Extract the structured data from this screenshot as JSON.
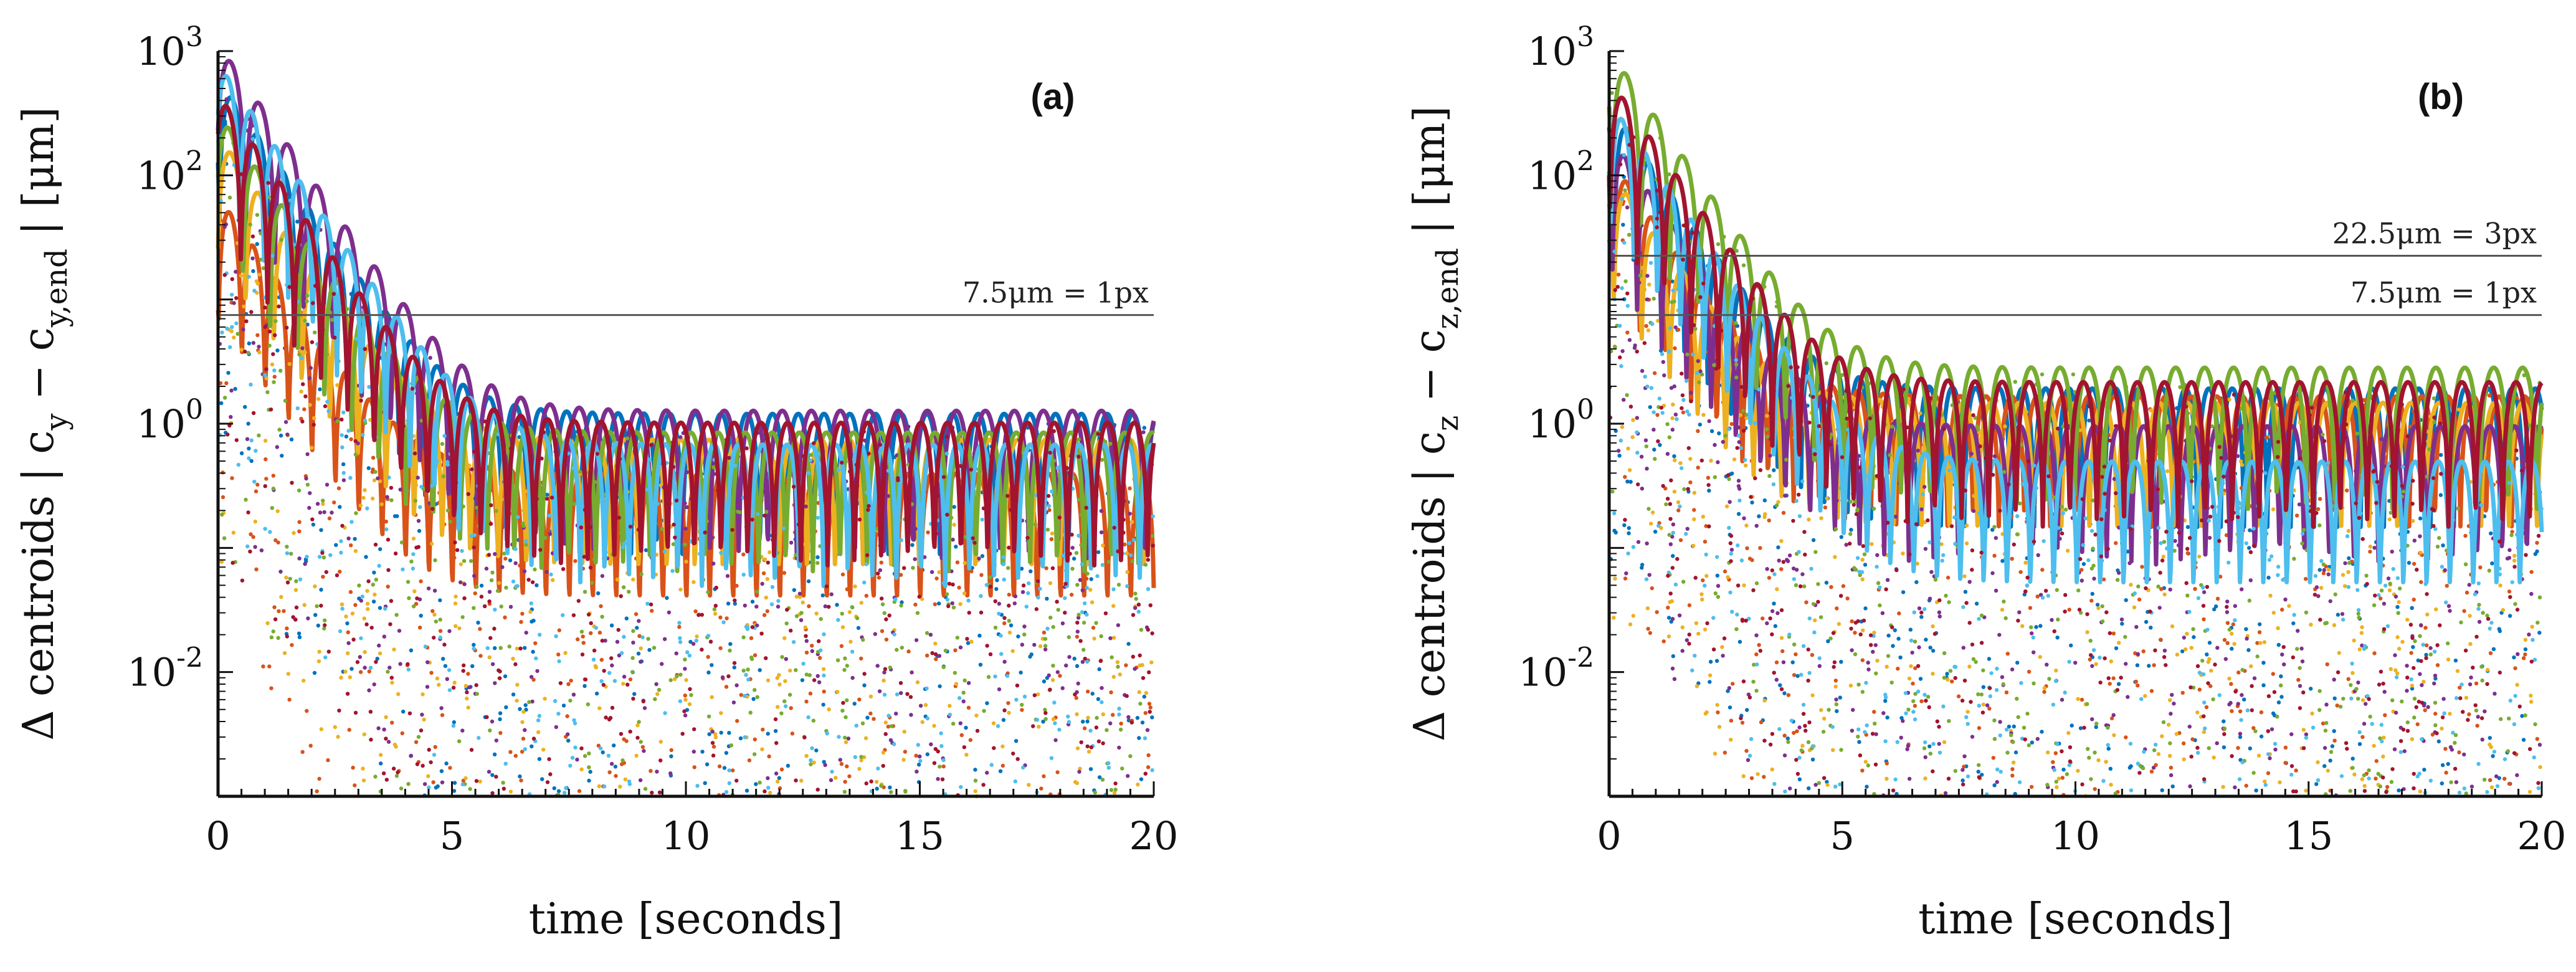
{
  "chart_data": [
    {
      "type": "line",
      "panel_label": "(a)",
      "xlabel": "time [seconds]",
      "ylabel": {
        "prefix": "Δ centroids   | c",
        "sub1": "y",
        "mid": " − c",
        "sub2": "y,end",
        "suffix": " | [μm]"
      },
      "xlim": [
        0,
        20
      ],
      "xticks": [
        "0",
        "5",
        "10",
        "15",
        "20"
      ],
      "ylim": [
        0.001,
        1000
      ],
      "yscale": "log",
      "yticks": [
        {
          "value": 0.01,
          "base": "10",
          "exp": "-2"
        },
        {
          "value": 1,
          "base": "10",
          "exp": "0"
        },
        {
          "value": 100,
          "base": "10",
          "exp": "2"
        },
        {
          "value": 1000,
          "base": "10",
          "exp": "3"
        }
      ],
      "reference_lines": [
        {
          "value": 7.5,
          "label": "7.5μm = 1px"
        }
      ],
      "series": [
        {
          "name": "series-blue-dark",
          "color": "#0072BD",
          "start": 500,
          "floor": 1.0,
          "amp": 1.6,
          "period": 0.55
        },
        {
          "name": "series-orange",
          "color": "#D95319",
          "start": 60,
          "floor": 0.35,
          "amp": 1.5,
          "period": 0.5
        },
        {
          "name": "series-yellow",
          "color": "#EDB120",
          "start": 200,
          "floor": 0.7,
          "amp": 1.4,
          "period": 0.6
        },
        {
          "name": "series-purple",
          "color": "#7E2F8E",
          "start": 900,
          "floor": 1.0,
          "amp": 1.7,
          "period": 0.62
        },
        {
          "name": "series-green",
          "color": "#77AC30",
          "start": 300,
          "floor": 0.8,
          "amp": 1.4,
          "period": 0.58
        },
        {
          "name": "series-cyan",
          "color": "#4DBEEE",
          "start": 700,
          "floor": 0.6,
          "amp": 1.5,
          "period": 0.52
        },
        {
          "name": "series-crimson",
          "color": "#A2142F",
          "start": 400,
          "floor": 0.9,
          "amp": 1.5,
          "period": 0.57
        }
      ]
    },
    {
      "type": "line",
      "panel_label": "(b)",
      "xlabel": "time [seconds]",
      "ylabel": {
        "prefix": "Δ centroids   | c",
        "sub1": "z",
        "mid": " − c",
        "sub2": "z,end",
        "suffix": " | [μm]"
      },
      "xlim": [
        0,
        20
      ],
      "xticks": [
        "0",
        "5",
        "10",
        "15",
        "20"
      ],
      "ylim": [
        0.001,
        1000
      ],
      "yscale": "log",
      "yticks": [
        {
          "value": 0.01,
          "base": "10",
          "exp": "-2"
        },
        {
          "value": 1,
          "base": "10",
          "exp": "0"
        },
        {
          "value": 100,
          "base": "10",
          "exp": "2"
        },
        {
          "value": 1000,
          "base": "10",
          "exp": "3"
        }
      ],
      "reference_lines": [
        {
          "value": 22.5,
          "label": "22.5μm = 3px"
        },
        {
          "value": 7.5,
          "label": "7.5μm = 1px"
        }
      ],
      "series": [
        {
          "name": "series-blue-dark",
          "color": "#0072BD",
          "start": 300,
          "floor": 1.6,
          "amp": 1.6,
          "period": 0.5
        },
        {
          "name": "series-orange",
          "color": "#D95319",
          "start": 150,
          "floor": 1.8,
          "amp": 1.2,
          "period": 0.55
        },
        {
          "name": "series-yellow",
          "color": "#EDB120",
          "start": 120,
          "floor": 1.6,
          "amp": 1.2,
          "period": 0.6
        },
        {
          "name": "series-purple",
          "color": "#7E2F8E",
          "start": 200,
          "floor": 0.9,
          "amp": 1.4,
          "period": 0.53
        },
        {
          "name": "series-green",
          "color": "#77AC30",
          "start": 900,
          "floor": 2.5,
          "amp": 1.5,
          "period": 0.62
        },
        {
          "name": "series-cyan",
          "color": "#4DBEEE",
          "start": 400,
          "floor": 0.5,
          "amp": 1.3,
          "period": 0.5
        },
        {
          "name": "series-crimson",
          "color": "#A2142F",
          "start": 500,
          "floor": 1.8,
          "amp": 1.6,
          "period": 0.58
        }
      ]
    }
  ]
}
